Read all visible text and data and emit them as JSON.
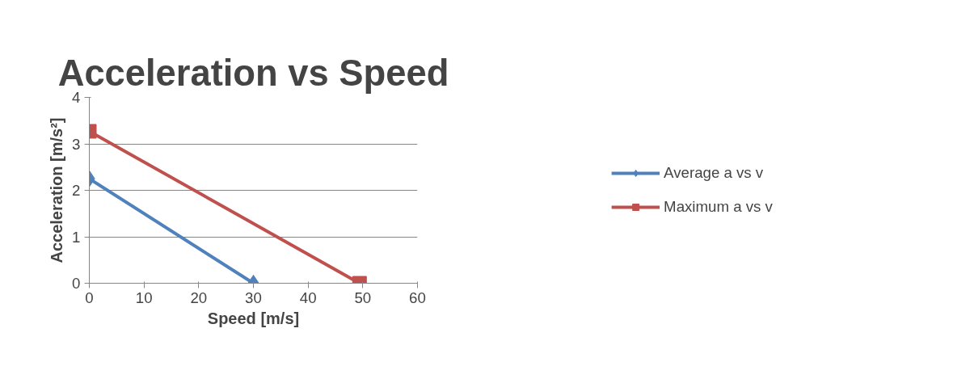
{
  "chart_data": {
    "type": "line",
    "title": "Acceleration vs Speed",
    "xlabel": "Speed [m/s]",
    "ylabel": "Acceleration [m/s²]",
    "xlim": [
      0,
      60
    ],
    "xticks": [
      0,
      10,
      20,
      30,
      40,
      50,
      60
    ],
    "ylim": [
      0,
      4
    ],
    "yticks": [
      0,
      1,
      2,
      3,
      4
    ],
    "grid": "y",
    "legend": "right",
    "series": [
      {
        "name": "Average a vs v",
        "color": "#4f81bd",
        "marker": "diamond",
        "x": [
          0,
          30
        ],
        "values": [
          2.25,
          0
        ]
      },
      {
        "name": "Maximum a vs v",
        "color": "#c0504d",
        "marker": "square",
        "x": [
          0,
          49.4
        ],
        "values": [
          3.27,
          0
        ]
      }
    ]
  }
}
